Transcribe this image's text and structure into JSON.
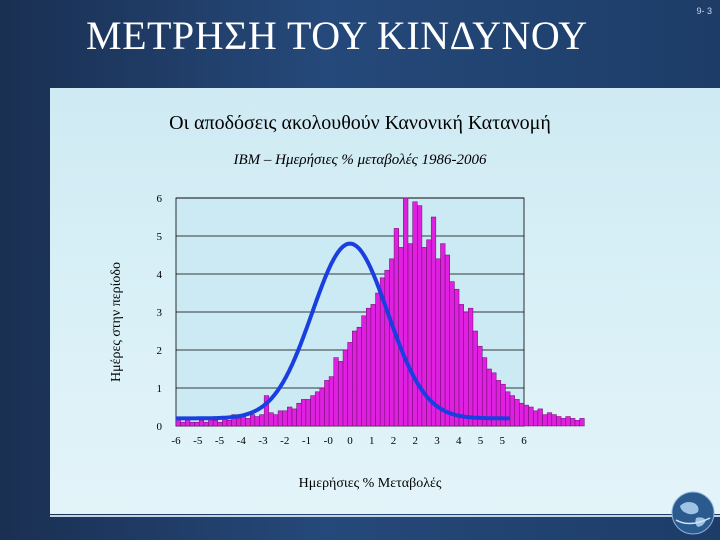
{
  "slide": {
    "title": "ΜΕΤΡΗΣΗ ΤΟΥ ΚΙΝΔΥΝΟΥ",
    "number": "9- 3",
    "subtitle": "Οι αποδόσεις ακολουθούν Κανονική Κατανομή"
  },
  "colors": {
    "bar_fill": "#e020e0",
    "bar_edge": "#6a0a6a",
    "curve": "#1a3fe0",
    "gridline": "#000000",
    "content_bg": "#d6eef6"
  },
  "chart_data": {
    "type": "bar",
    "title": "IBM – Ημερήσιες % μεταβολές 1986-2006",
    "xlabel": "Ημερήσιες  % Μεταβολές",
    "ylabel": "Ημέρες στην περίοδο",
    "ylim": [
      0,
      6
    ],
    "xlim": [
      -6,
      6
    ],
    "y_ticks": [
      "0",
      "1",
      "2",
      "3",
      "4",
      "5",
      "6"
    ],
    "x_ticks": [
      "-6",
      "-5",
      "-5",
      "-4",
      "-3",
      "-2",
      "-1",
      "-0",
      "0",
      "1",
      "2",
      "2",
      "3",
      "4",
      "5",
      "5",
      "6"
    ],
    "grid": "horizontal",
    "bin_start": -6,
    "bin_width": 0.16,
    "series": [
      {
        "values": [
          0.2,
          0.1,
          0.2,
          0.1,
          0.1,
          0.15,
          0.1,
          0.2,
          0.15,
          0.1,
          0.2,
          0.15,
          0.3,
          0.2,
          0.25,
          0.2,
          0.3,
          0.25,
          0.3,
          0.8,
          0.35,
          0.3,
          0.4,
          0.4,
          0.5,
          0.45,
          0.6,
          0.7,
          0.7,
          0.8,
          0.9,
          1.0,
          1.2,
          1.3,
          1.8,
          1.7,
          2.0,
          2.2,
          2.5,
          2.6,
          2.9,
          3.1,
          3.2,
          3.5,
          3.9,
          4.1,
          4.4,
          5.2,
          4.7,
          6.0,
          4.8,
          5.9,
          5.8,
          4.7,
          4.9,
          5.5,
          4.4,
          4.8,
          4.5,
          3.8,
          3.6,
          3.2,
          3.0,
          3.1,
          2.5,
          2.1,
          1.8,
          1.5,
          1.4,
          1.2,
          1.1,
          0.9,
          0.8,
          0.7,
          0.6,
          0.55,
          0.5,
          0.4,
          0.45,
          0.3,
          0.35,
          0.3,
          0.25,
          0.2,
          0.25,
          0.2,
          0.15,
          0.2
        ]
      },
      {
        "curve": "normal",
        "mean": 0,
        "sd": 1.3,
        "peak": 4.8,
        "baseline": 0.2,
        "x_range": [
          -6,
          5.5
        ]
      }
    ]
  }
}
